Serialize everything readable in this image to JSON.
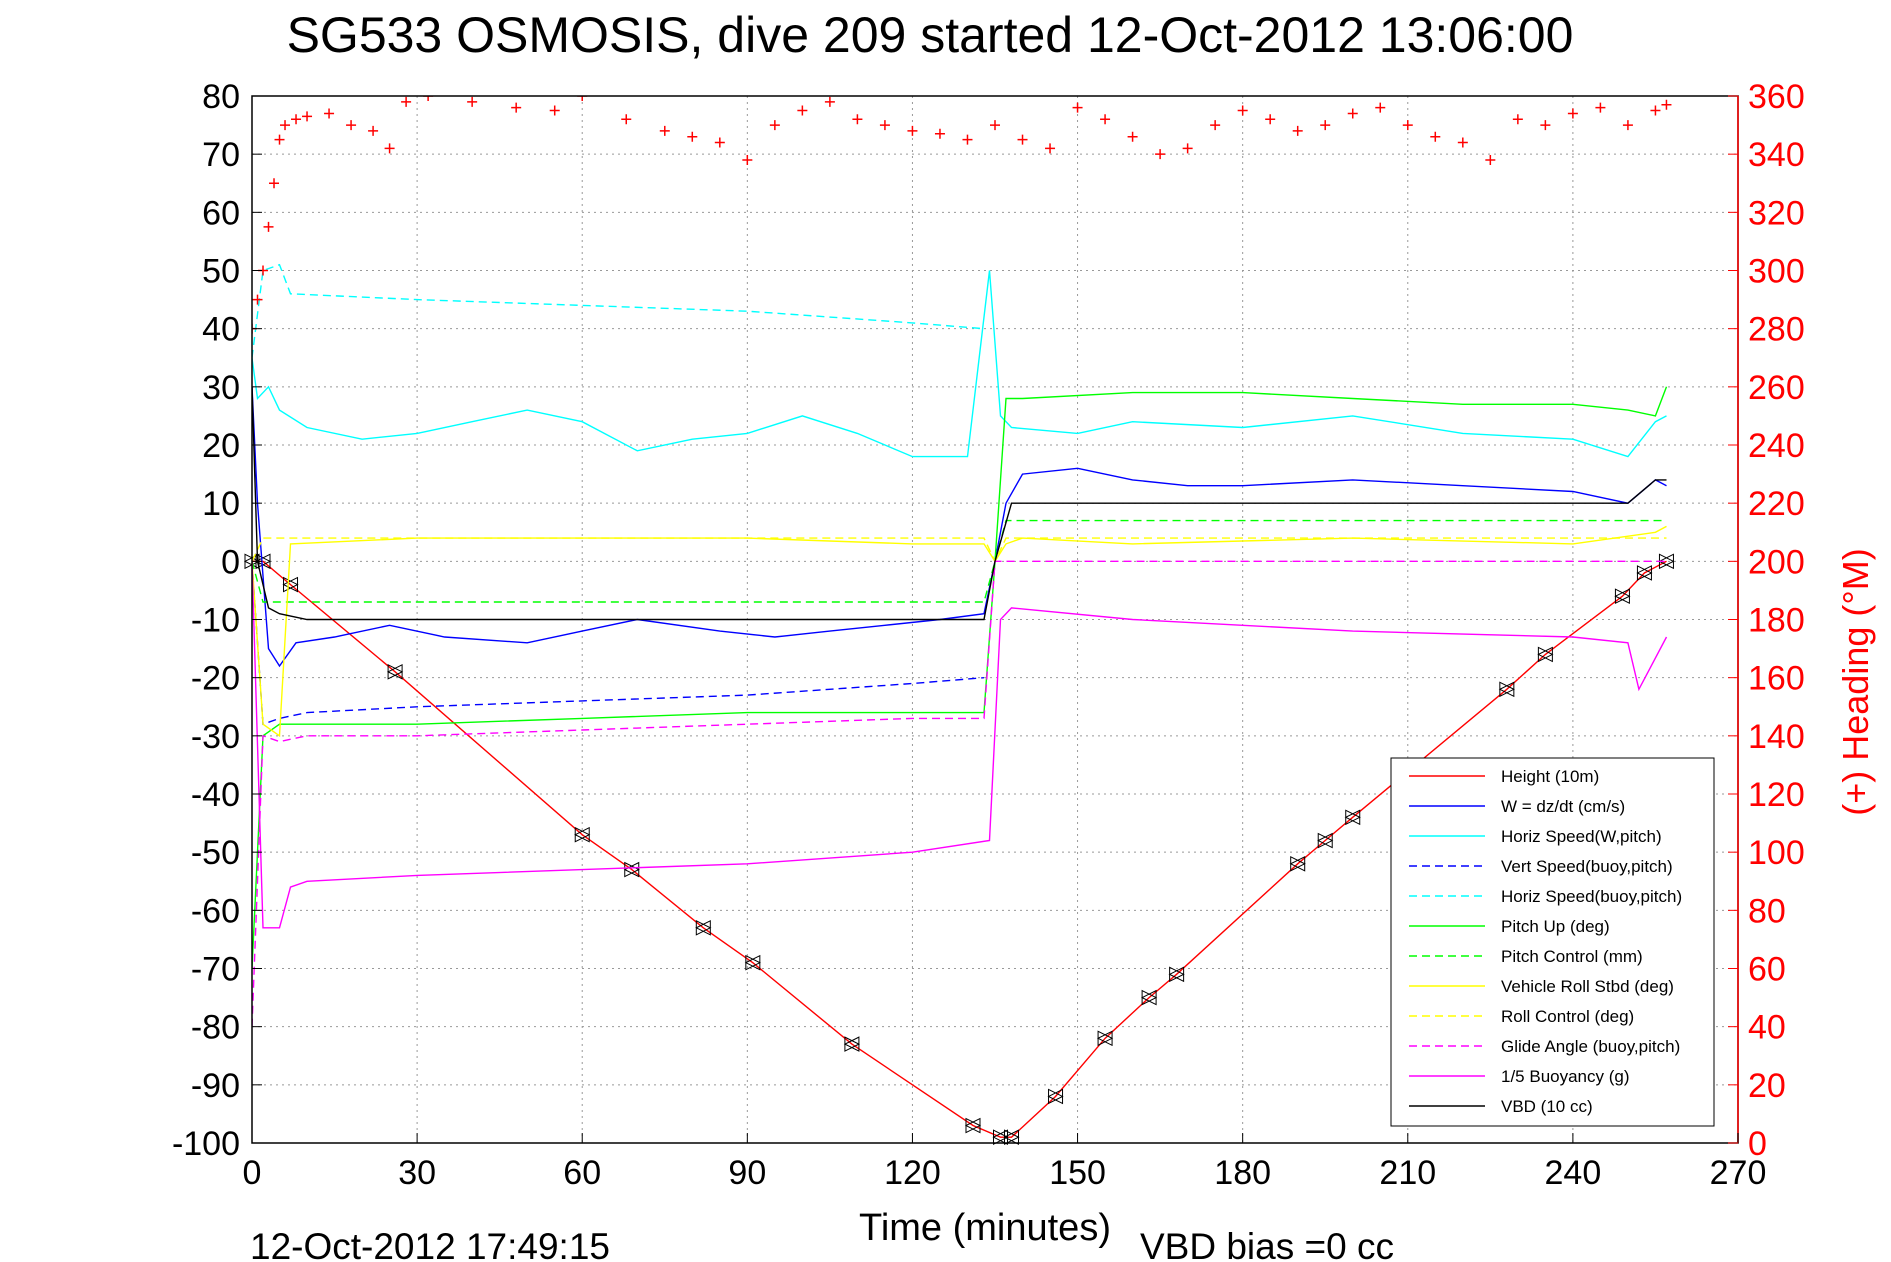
{
  "chart_data": {
    "type": "line",
    "title": "SG533 OSMOSIS, dive 209 started 12-Oct-2012 13:06:00",
    "xlabel": "Time (minutes)",
    "ylabel_right": "(+) Heading (°M)",
    "footer_left": "12-Oct-2012 17:49:15",
    "footer_right": "VBD bias =0 cc",
    "xlim": [
      0,
      270
    ],
    "ylim": [
      -100,
      80
    ],
    "y2lim": [
      0,
      360
    ],
    "x_ticks": [
      "0",
      "30",
      "60",
      "90",
      "120",
      "150",
      "180",
      "210",
      "240",
      "270"
    ],
    "y_ticks": [
      "80",
      "70",
      "60",
      "50",
      "40",
      "30",
      "20",
      "10",
      "0",
      "-10",
      "-20",
      "-30",
      "-40",
      "-50",
      "-60",
      "-70",
      "-80",
      "-90",
      "-100"
    ],
    "y2_ticks": [
      "360",
      "340",
      "320",
      "300",
      "280",
      "260",
      "240",
      "220",
      "200",
      "180",
      "160",
      "140",
      "120",
      "100",
      "80",
      "60",
      "40",
      "20",
      "0"
    ],
    "grid": true,
    "legend_position": "bottom-right",
    "colors": {
      "axis_right": "#ff0000",
      "heading": "#ff0000"
    },
    "legend": [
      {
        "label": "Height (10m)",
        "color": "#ff0000",
        "dash": "solid"
      },
      {
        "label": "W = dz/dt (cm/s)",
        "color": "#0000ff",
        "dash": "solid"
      },
      {
        "label": "Horiz Speed(W,pitch)",
        "color": "#00ffff",
        "dash": "solid"
      },
      {
        "label": "Vert Speed(buoy,pitch)",
        "color": "#0000ff",
        "dash": "dashed"
      },
      {
        "label": "Horiz Speed(buoy,pitch)",
        "color": "#00ffff",
        "dash": "dashed"
      },
      {
        "label": "Pitch Up (deg)",
        "color": "#00ff00",
        "dash": "solid"
      },
      {
        "label": "Pitch Control (mm)",
        "color": "#00ff00",
        "dash": "dashed"
      },
      {
        "label": "Vehicle Roll Stbd (deg)",
        "color": "#ffff00",
        "dash": "solid"
      },
      {
        "label": "Roll Control (deg)",
        "color": "#ffff00",
        "dash": "dashed"
      },
      {
        "label": "Glide Angle (buoy,pitch)",
        "color": "#ff00ff",
        "dash": "dashed"
      },
      {
        "label": "1/5 Buoyancy (g)",
        "color": "#ff00ff",
        "dash": "solid"
      },
      {
        "label": "VBD (10 cc)",
        "color": "#000000",
        "dash": "solid"
      }
    ],
    "series": [
      {
        "name": "Height (10m)",
        "x": [
          0,
          2,
          7,
          26,
          60,
          69,
          82,
          91,
          109,
          131,
          136,
          138,
          146,
          155,
          163,
          168,
          190,
          195,
          200,
          228,
          235,
          249,
          253,
          257
        ],
        "y": [
          0,
          0,
          -4,
          -19,
          -47,
          -53,
          -63,
          -69,
          -83,
          -97,
          -99,
          -99,
          -92,
          -82,
          -75,
          -71,
          -52,
          -48,
          -44,
          -22,
          -16,
          -6,
          -2,
          0
        ]
      },
      {
        "name": "W = dz/dt (cm/s)",
        "x": [
          0,
          1,
          3,
          5,
          8,
          15,
          25,
          35,
          50,
          60,
          70,
          85,
          95,
          105,
          115,
          125,
          133,
          135,
          137,
          140,
          150,
          160,
          170,
          180,
          200,
          220,
          240,
          250,
          255,
          257
        ],
        "y": [
          30,
          10,
          -15,
          -18,
          -14,
          -13,
          -11,
          -13,
          -14,
          -12,
          -10,
          -12,
          -13,
          -12,
          -11,
          -10,
          -9,
          0,
          10,
          15,
          16,
          14,
          13,
          13,
          14,
          13,
          12,
          10,
          14,
          13
        ]
      },
      {
        "name": "Horiz Speed(W,pitch)",
        "x": [
          0,
          1,
          3,
          5,
          10,
          20,
          30,
          40,
          50,
          60,
          70,
          80,
          90,
          100,
          110,
          120,
          130,
          134,
          136,
          138,
          150,
          160,
          180,
          200,
          220,
          240,
          250,
          255,
          257
        ],
        "y": [
          35,
          28,
          30,
          26,
          23,
          21,
          22,
          24,
          26,
          24,
          19,
          21,
          22,
          25,
          22,
          18,
          18,
          50,
          25,
          23,
          22,
          24,
          23,
          25,
          22,
          21,
          18,
          24,
          25
        ]
      },
      {
        "name": "Vert Speed(buoy,pitch)",
        "x": [
          0,
          2,
          5,
          10,
          30,
          60,
          90,
          120,
          133
        ],
        "y": [
          0,
          -28,
          -27,
          -26,
          -25,
          -24,
          -23,
          -21,
          -20
        ]
      },
      {
        "name": "Horiz Speed(buoy,pitch)",
        "x": [
          0,
          2,
          5,
          7,
          30,
          60,
          90,
          120,
          133
        ],
        "y": [
          35,
          50,
          51,
          46,
          45,
          44,
          43,
          41,
          40
        ]
      },
      {
        "name": "Pitch Up (deg)",
        "x": [
          0,
          2,
          5,
          10,
          30,
          60,
          90,
          120,
          133,
          135,
          137,
          140,
          160,
          180,
          200,
          220,
          240,
          250,
          255,
          257
        ],
        "y": [
          -70,
          -30,
          -28,
          -28,
          -28,
          -27,
          -26,
          -26,
          -26,
          0,
          28,
          28,
          29,
          29,
          28,
          27,
          27,
          26,
          25,
          30
        ]
      },
      {
        "name": "Pitch Control (mm)",
        "x": [
          0,
          2,
          10,
          133,
          135,
          137,
          257
        ],
        "y": [
          0,
          -7,
          -7,
          -7,
          0,
          7,
          7
        ]
      },
      {
        "name": "Vehicle Roll Stbd (deg)",
        "x": [
          0,
          2,
          5,
          7,
          30,
          60,
          90,
          120,
          133,
          135,
          137,
          140,
          160,
          200,
          240,
          255,
          257
        ],
        "y": [
          0,
          -28,
          -30,
          3,
          4,
          4,
          4,
          3,
          3,
          0,
          3,
          4,
          3,
          4,
          3,
          5,
          6
        ]
      },
      {
        "name": "Roll Control (deg)",
        "x": [
          0,
          2,
          10,
          133,
          135,
          137,
          257
        ],
        "y": [
          0,
          4,
          4,
          4,
          0,
          4,
          4
        ]
      },
      {
        "name": "Glide Angle (buoy,pitch)",
        "x": [
          0,
          2,
          5,
          10,
          30,
          60,
          90,
          120,
          133,
          135,
          137,
          257
        ],
        "y": [
          -80,
          -30,
          -31,
          -30,
          -30,
          -29,
          -28,
          -27,
          -27,
          0,
          0,
          0
        ]
      },
      {
        "name": "1/5 Buoyancy (g)",
        "x": [
          0,
          2,
          5,
          7,
          10,
          30,
          60,
          90,
          120,
          134,
          136,
          138,
          160,
          200,
          240,
          250,
          252,
          257
        ],
        "y": [
          0,
          -63,
          -63,
          -56,
          -55,
          -54,
          -53,
          -52,
          -50,
          -48,
          -10,
          -8,
          -10,
          -12,
          -13,
          -14,
          -22,
          -13
        ]
      },
      {
        "name": "VBD (10 cc)",
        "x": [
          0,
          1,
          3,
          5,
          10,
          60,
          100,
          133,
          135,
          138,
          140,
          160,
          200,
          240,
          250,
          255,
          257
        ],
        "y": [
          30,
          0,
          -8,
          -9,
          -10,
          -10,
          -10,
          -10,
          0,
          10,
          10,
          10,
          10,
          10,
          10,
          14,
          14
        ]
      },
      {
        "name": "Heading",
        "axis": "right",
        "x": [
          0,
          1,
          2,
          3,
          4,
          5,
          6,
          8,
          10,
          14,
          18,
          22,
          25,
          28,
          32,
          40,
          48,
          55,
          60,
          68,
          75,
          80,
          85,
          90,
          95,
          100,
          105,
          110,
          115,
          120,
          125,
          130,
          135,
          140,
          145,
          150,
          155,
          160,
          165,
          170,
          175,
          180,
          185,
          190,
          195,
          200,
          205,
          210,
          215,
          220,
          225,
          230,
          235,
          240,
          245,
          250,
          255,
          257
        ],
        "y": [
          280,
          290,
          300,
          315,
          330,
          345,
          350,
          352,
          353,
          354,
          350,
          348,
          342,
          358,
          360,
          358,
          356,
          355,
          360,
          352,
          348,
          346,
          344,
          338,
          350,
          355,
          358,
          352,
          350,
          348,
          347,
          345,
          350,
          345,
          342,
          356,
          352,
          346,
          340,
          342,
          350,
          355,
          352,
          348,
          350,
          354,
          356,
          350,
          346,
          344,
          338,
          352,
          350,
          354,
          356,
          350,
          355,
          357
        ]
      }
    ]
  }
}
